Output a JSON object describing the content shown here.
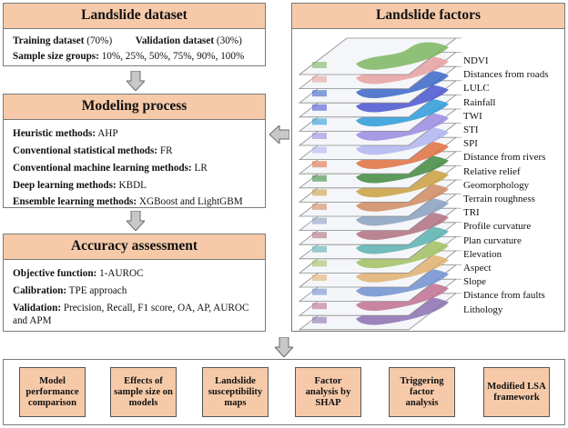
{
  "dataset": {
    "title": "Landslide dataset",
    "training_label": "Training dataset",
    "training_value": " (70%)",
    "validation_label": "Validation dataset",
    "validation_value": " (30%)",
    "sample_label": "Sample size groups:",
    "sample_value": " 10%, 25%, 50%, 75%, 90%, 100%"
  },
  "modeling": {
    "title": "Modeling process",
    "rows": [
      {
        "label": "Heuristic methods:",
        "value": " AHP"
      },
      {
        "label": "Conventional statistical methods:",
        "value": " FR"
      },
      {
        "label": "Conventional machine learning methods:",
        "value": " LR"
      },
      {
        "label": "Deep learning methods:",
        "value": " KBDL"
      },
      {
        "label": "Ensemble learning methods:",
        "value": " XGBoost and LightGBM"
      }
    ]
  },
  "accuracy": {
    "title": "Accuracy assessment",
    "objective_label": "Objective function:",
    "objective_value": " 1-AUROC",
    "calibration_label": "Calibration:",
    "calibration_value": " TPE approach",
    "validation_label": "Validation:",
    "validation_value_line1": " Precision, Recall, F1 score, OA, AP,  AUROC",
    "validation_value_line2": "and APM"
  },
  "factors": {
    "title": "Landslide factors",
    "items": [
      "NDVI",
      "Distances from roads",
      "LULC",
      "Rainfall",
      "TWI",
      "STI",
      "SPI",
      "Distance from rivers",
      "Relative relief",
      "Geomorphology",
      "Terrain roughness",
      "TRI",
      "Profile curvature",
      "Plan curvature",
      "Elevation",
      "Aspect",
      "Slope",
      "Distance from faults",
      "Lithology"
    ],
    "layer_colors": [
      "#7bb661",
      "#e8a0a0",
      "#3a66c8",
      "#4a55d0",
      "#2a9ad8",
      "#9a8ae0",
      "#b0b4f0",
      "#e07040",
      "#3f8a3f",
      "#caa040",
      "#d08a60",
      "#8aa0c0",
      "#b07080",
      "#5ab0b0",
      "#a0c060",
      "#e0b070",
      "#7090d0",
      "#c07090",
      "#8a70b0"
    ]
  },
  "outputs": [
    "Model performance comparison",
    "Effects of sample size on models",
    "Landslide susceptibility maps",
    "Factor analysis by SHAP",
    "Triggering factor analysis",
    "Modified LSA framework"
  ],
  "colors": {
    "title_fill": "#f6caa9",
    "arrow_fill": "#c8c8c8",
    "border": "#7a7a7a"
  }
}
